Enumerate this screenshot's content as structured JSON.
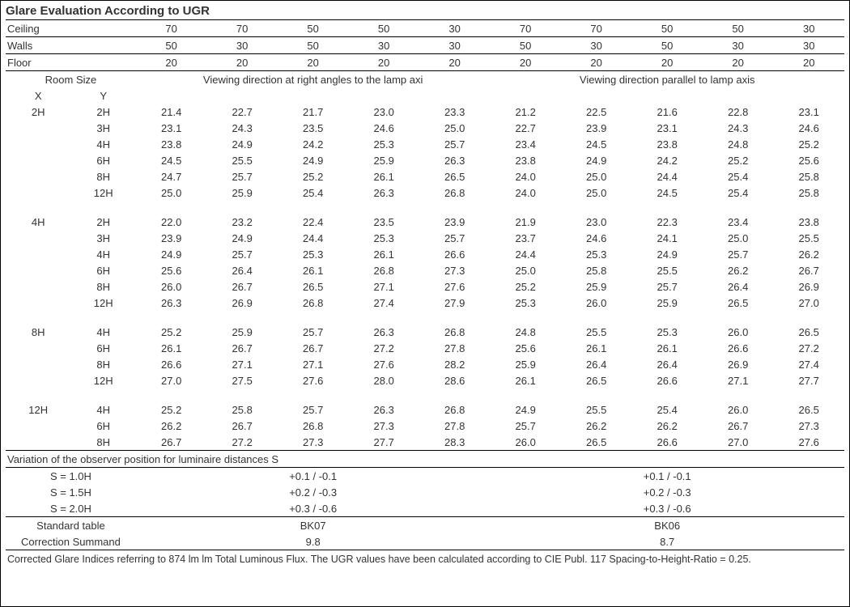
{
  "title": "Glare Evaluation According to UGR",
  "reflectance": {
    "rows": [
      {
        "label": "Ceiling",
        "vals": [
          "70",
          "70",
          "50",
          "50",
          "30",
          "70",
          "70",
          "50",
          "50",
          "30"
        ]
      },
      {
        "label": "Walls",
        "vals": [
          "50",
          "30",
          "50",
          "30",
          "30",
          "50",
          "30",
          "50",
          "30",
          "30"
        ]
      },
      {
        "label": "Floor",
        "vals": [
          "20",
          "20",
          "20",
          "20",
          "20",
          "20",
          "20",
          "20",
          "20",
          "20"
        ]
      }
    ]
  },
  "subheader": {
    "roomsize": "Room Size",
    "x": "X",
    "y": "Y",
    "left": "Viewing direction at right angles to the lamp axi",
    "right": "Viewing direction parallel to lamp axis"
  },
  "groups": [
    {
      "x": "2H",
      "rows": [
        {
          "y": "2H",
          "v": [
            "21.4",
            "22.7",
            "21.7",
            "23.0",
            "23.3",
            "21.2",
            "22.5",
            "21.6",
            "22.8",
            "23.1"
          ]
        },
        {
          "y": "3H",
          "v": [
            "23.1",
            "24.3",
            "23.5",
            "24.6",
            "25.0",
            "22.7",
            "23.9",
            "23.1",
            "24.3",
            "24.6"
          ]
        },
        {
          "y": "4H",
          "v": [
            "23.8",
            "24.9",
            "24.2",
            "25.3",
            "25.7",
            "23.4",
            "24.5",
            "23.8",
            "24.8",
            "25.2"
          ]
        },
        {
          "y": "6H",
          "v": [
            "24.5",
            "25.5",
            "24.9",
            "25.9",
            "26.3",
            "23.8",
            "24.9",
            "24.2",
            "25.2",
            "25.6"
          ]
        },
        {
          "y": "8H",
          "v": [
            "24.7",
            "25.7",
            "25.2",
            "26.1",
            "26.5",
            "24.0",
            "25.0",
            "24.4",
            "25.4",
            "25.8"
          ]
        },
        {
          "y": "12H",
          "v": [
            "25.0",
            "25.9",
            "25.4",
            "26.3",
            "26.8",
            "24.0",
            "25.0",
            "24.5",
            "25.4",
            "25.8"
          ]
        }
      ]
    },
    {
      "x": "4H",
      "rows": [
        {
          "y": "2H",
          "v": [
            "22.0",
            "23.2",
            "22.4",
            "23.5",
            "23.9",
            "21.9",
            "23.0",
            "22.3",
            "23.4",
            "23.8"
          ]
        },
        {
          "y": "3H",
          "v": [
            "23.9",
            "24.9",
            "24.4",
            "25.3",
            "25.7",
            "23.7",
            "24.6",
            "24.1",
            "25.0",
            "25.5"
          ]
        },
        {
          "y": "4H",
          "v": [
            "24.9",
            "25.7",
            "25.3",
            "26.1",
            "26.6",
            "24.4",
            "25.3",
            "24.9",
            "25.7",
            "26.2"
          ]
        },
        {
          "y": "6H",
          "v": [
            "25.6",
            "26.4",
            "26.1",
            "26.8",
            "27.3",
            "25.0",
            "25.8",
            "25.5",
            "26.2",
            "26.7"
          ]
        },
        {
          "y": "8H",
          "v": [
            "26.0",
            "26.7",
            "26.5",
            "27.1",
            "27.6",
            "25.2",
            "25.9",
            "25.7",
            "26.4",
            "26.9"
          ]
        },
        {
          "y": "12H",
          "v": [
            "26.3",
            "26.9",
            "26.8",
            "27.4",
            "27.9",
            "25.3",
            "26.0",
            "25.9",
            "26.5",
            "27.0"
          ]
        }
      ]
    },
    {
      "x": "8H",
      "rows": [
        {
          "y": "4H",
          "v": [
            "25.2",
            "25.9",
            "25.7",
            "26.3",
            "26.8",
            "24.8",
            "25.5",
            "25.3",
            "26.0",
            "26.5"
          ]
        },
        {
          "y": "6H",
          "v": [
            "26.1",
            "26.7",
            "26.7",
            "27.2",
            "27.8",
            "25.6",
            "26.1",
            "26.1",
            "26.6",
            "27.2"
          ]
        },
        {
          "y": "8H",
          "v": [
            "26.6",
            "27.1",
            "27.1",
            "27.6",
            "28.2",
            "25.9",
            "26.4",
            "26.4",
            "26.9",
            "27.4"
          ]
        },
        {
          "y": "12H",
          "v": [
            "27.0",
            "27.5",
            "27.6",
            "28.0",
            "28.6",
            "26.1",
            "26.5",
            "26.6",
            "27.1",
            "27.7"
          ]
        }
      ]
    },
    {
      "x": "12H",
      "rows": [
        {
          "y": "4H",
          "v": [
            "25.2",
            "25.8",
            "25.7",
            "26.3",
            "26.8",
            "24.9",
            "25.5",
            "25.4",
            "26.0",
            "26.5"
          ]
        },
        {
          "y": "6H",
          "v": [
            "26.2",
            "26.7",
            "26.8",
            "27.3",
            "27.8",
            "25.7",
            "26.2",
            "26.2",
            "26.7",
            "27.3"
          ]
        },
        {
          "y": "8H",
          "v": [
            "26.7",
            "27.2",
            "27.3",
            "27.7",
            "28.3",
            "26.0",
            "26.5",
            "26.6",
            "27.0",
            "27.6"
          ]
        }
      ]
    }
  ],
  "variation": {
    "title": "Variation of the observer position for luminaire distances S",
    "rows": [
      {
        "s": "S = 1.0H",
        "left": "+0.1 / -0.1",
        "right": "+0.1 / -0.1"
      },
      {
        "s": "S = 1.5H",
        "left": "+0.2 / -0.3",
        "right": "+0.2 / -0.3"
      },
      {
        "s": "S = 2.0H",
        "left": "+0.3 / -0.6",
        "right": "+0.3 / -0.6"
      }
    ]
  },
  "standard": {
    "label1": "Standard table",
    "label2": "Correction Summand",
    "left_table": "BK07",
    "right_table": "BK06",
    "left_corr": "9.8",
    "right_corr": "8.7"
  },
  "footnote": "Corrected Glare Indices referring to 874 lm lm Total Luminous Flux. The UGR values have been calculated according to CIE Publ. 117    Spacing-to-Height-Ratio = 0.25."
}
